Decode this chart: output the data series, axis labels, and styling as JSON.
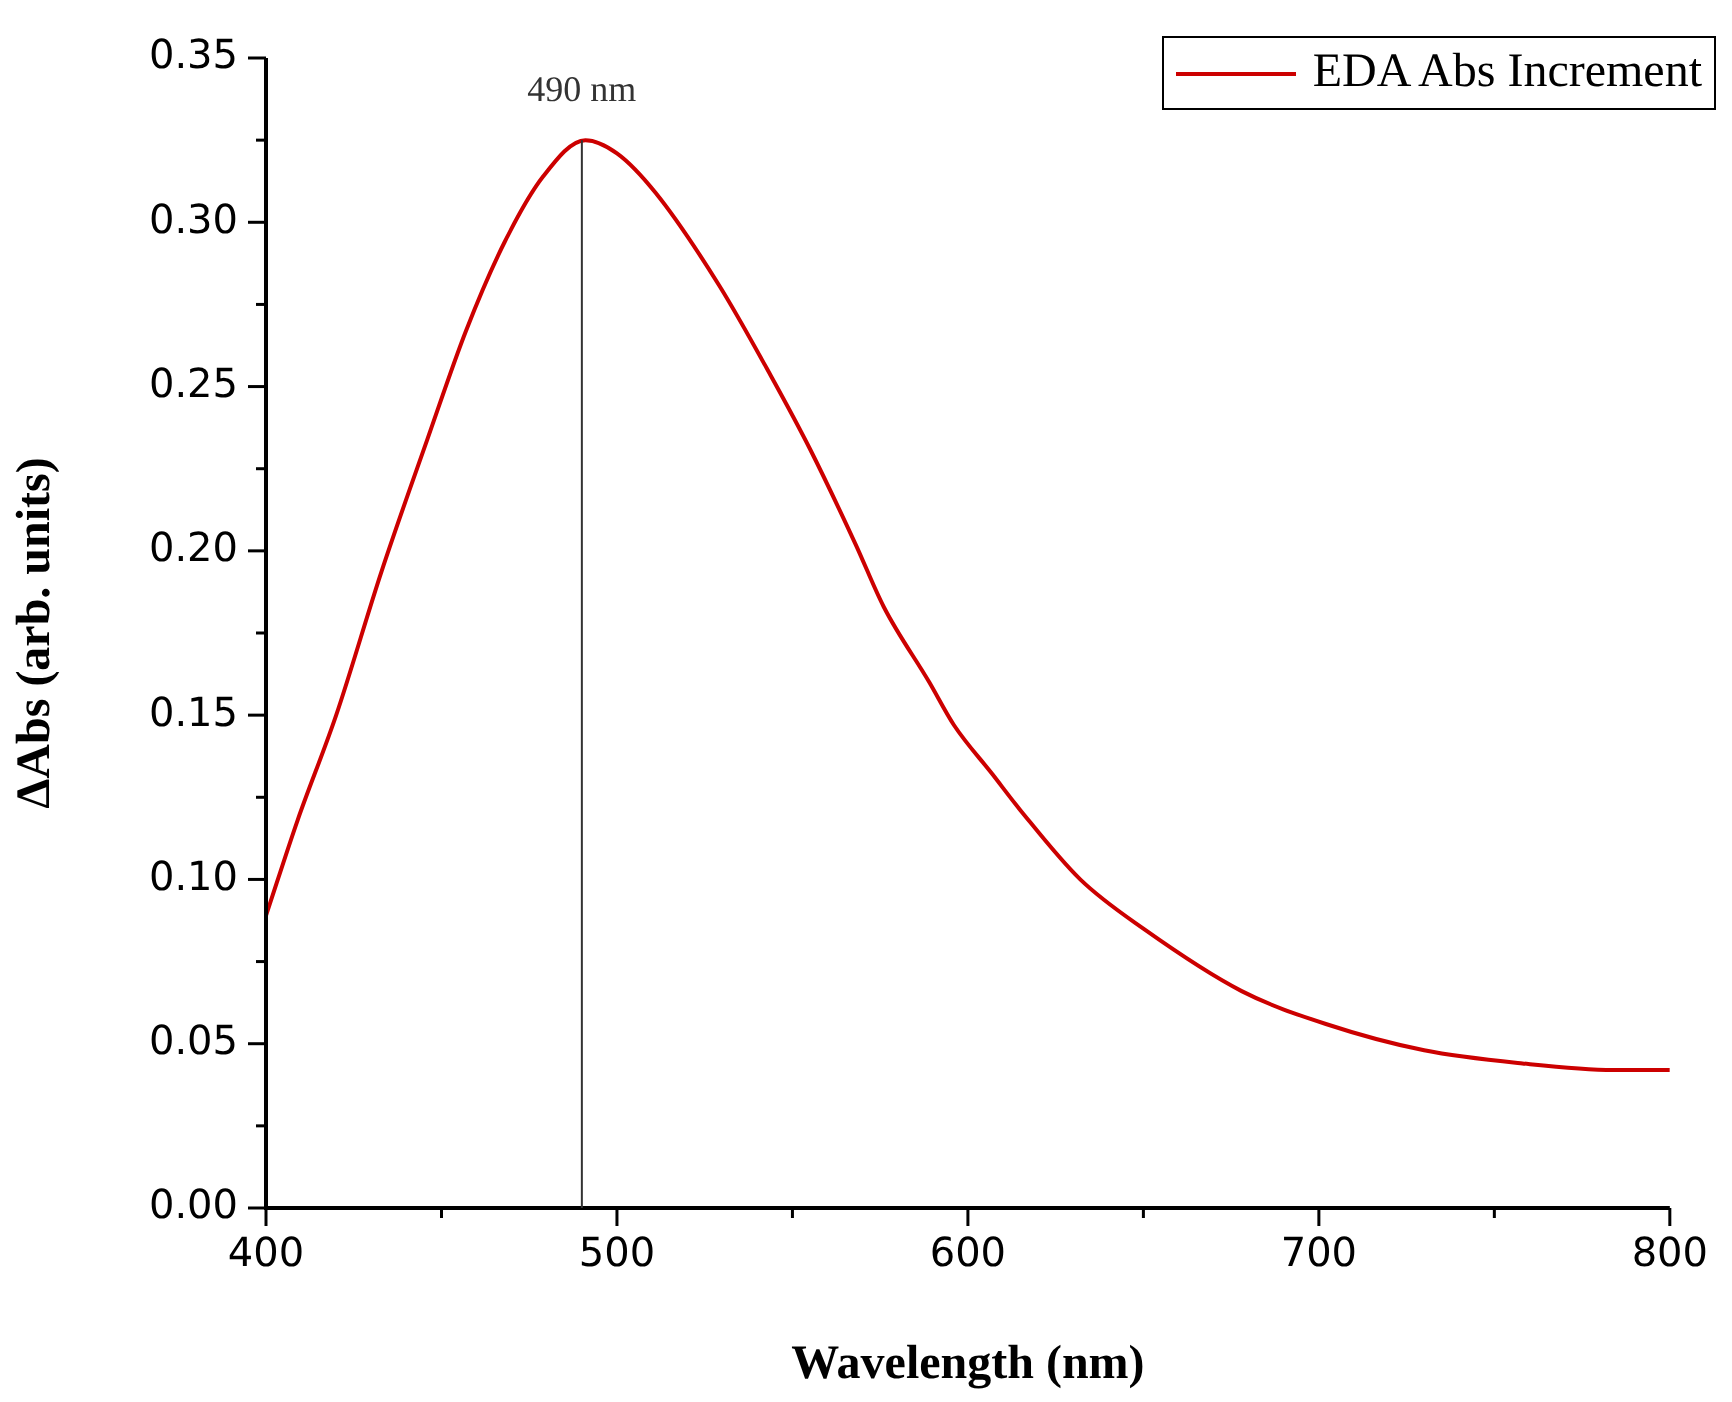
{
  "chart_data": {
    "type": "line",
    "xlabel": "Wavelength (nm)",
    "ylabel": "ΔAbs (arb. units)",
    "xlim": [
      400,
      800
    ],
    "xticks": [
      400,
      500,
      600,
      700,
      800
    ],
    "ylim": [
      0,
      0.35
    ],
    "yticks": [
      {
        "value": 0,
        "label": "0.00"
      },
      {
        "value": 0.05,
        "label": "0.05"
      },
      {
        "value": 0.1,
        "label": "0.10"
      },
      {
        "value": 0.15,
        "label": "0.15"
      },
      {
        "value": 0.2,
        "label": "0.20"
      },
      {
        "value": 0.25,
        "label": "0.25"
      },
      {
        "value": 0.3,
        "label": "0.30"
      },
      {
        "value": 0.35,
        "label": "0.35"
      }
    ],
    "grid": false,
    "legend": "top right",
    "marker": "none",
    "line_style": "solid",
    "ref_lines": [
      {
        "axis": "x",
        "value": 490,
        "label": "490 nm",
        "color": "#333333"
      }
    ],
    "series": [
      {
        "name": "EDA Abs Increment",
        "color": "#cc0000",
        "x": [
          400,
          409,
          420,
          433,
          446,
          457,
          468,
          479,
          491,
          500,
          511,
          529,
          544,
          555,
          568,
          576,
          589,
          596,
          607,
          615,
          632,
          650,
          678,
          702,
          730,
          758,
          784,
          800
        ],
        "values": [
          0.089,
          0.118,
          0.15,
          0.194,
          0.234,
          0.267,
          0.294,
          0.314,
          0.325,
          0.321,
          0.309,
          0.281,
          0.253,
          0.231,
          0.202,
          0.183,
          0.16,
          0.147,
          0.132,
          0.121,
          0.1,
          0.085,
          0.066,
          0.056,
          0.048,
          0.044,
          0.042,
          0.042
        ]
      }
    ]
  }
}
